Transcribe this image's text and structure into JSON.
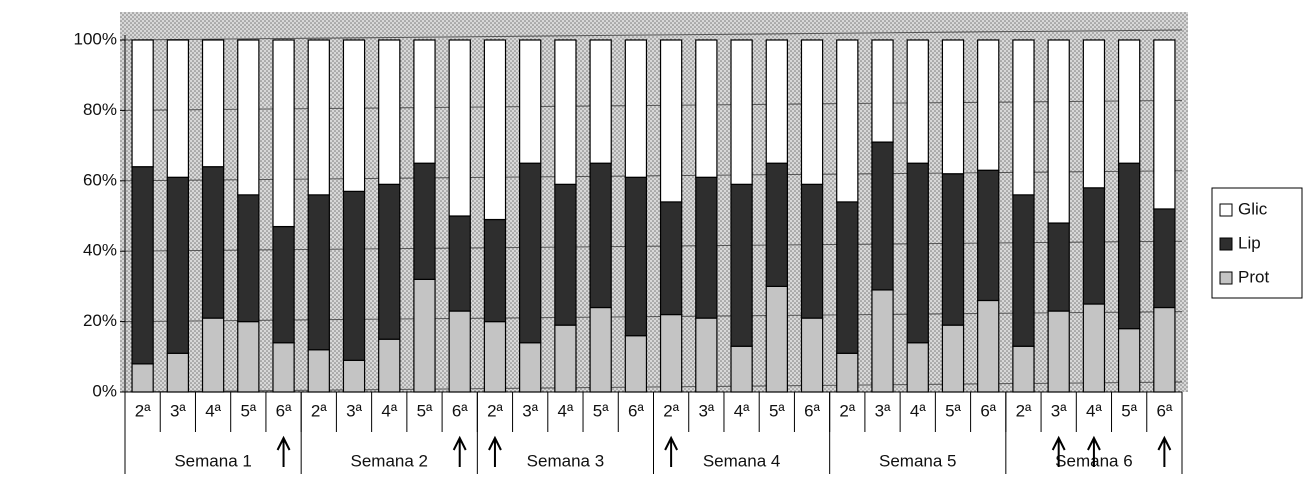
{
  "chart_data": {
    "type": "stacked_bar_100",
    "categories": [
      "2ª",
      "3ª",
      "4ª",
      "5ª",
      "6ª",
      "2ª",
      "3ª",
      "4ª",
      "5ª",
      "6ª",
      "2ª",
      "3ª",
      "4ª",
      "5ª",
      "6ª",
      "2ª",
      "3ª",
      "4ª",
      "5ª",
      "6ª",
      "2ª",
      "3ª",
      "4ª",
      "5ª",
      "6ª",
      "2ª",
      "3ª",
      "4ª",
      "5ª",
      "6ª"
    ],
    "groups": [
      "Semana 1",
      "Semana 2",
      "Semana 3",
      "Semana 4",
      "Semana 5",
      "Semana 6"
    ],
    "series": [
      {
        "name": "Prot",
        "color": "#c4c4c4",
        "values": [
          8,
          11,
          21,
          20,
          14,
          12,
          9,
          15,
          32,
          23,
          20,
          14,
          19,
          24,
          16,
          22,
          21,
          13,
          30,
          21,
          11,
          29,
          14,
          19,
          26,
          13,
          23,
          25,
          18,
          24
        ]
      },
      {
        "name": "Lip",
        "color": "#2e2e2e",
        "values": [
          56,
          50,
          43,
          36,
          33,
          44,
          48,
          44,
          33,
          27,
          29,
          51,
          40,
          41,
          45,
          32,
          40,
          46,
          35,
          38,
          43,
          42,
          51,
          43,
          37,
          43,
          25,
          33,
          47,
          28
        ]
      },
      {
        "name": "Glic",
        "color": "#ffffff",
        "values": [
          36,
          39,
          36,
          44,
          53,
          44,
          43,
          41,
          35,
          50,
          51,
          35,
          41,
          35,
          39,
          46,
          39,
          41,
          35,
          41,
          46,
          29,
          35,
          38,
          37,
          44,
          52,
          42,
          35,
          48
        ]
      }
    ],
    "ylim": [
      0,
      100
    ],
    "yticks": [
      {
        "value": 0,
        "label": "0%"
      },
      {
        "value": 20,
        "label": "20%"
      },
      {
        "value": 40,
        "label": "40%"
      },
      {
        "value": 60,
        "label": "60%"
      },
      {
        "value": 80,
        "label": "80%"
      },
      {
        "value": 100,
        "label": "100%"
      }
    ],
    "grid": true,
    "legend": "right"
  }
}
